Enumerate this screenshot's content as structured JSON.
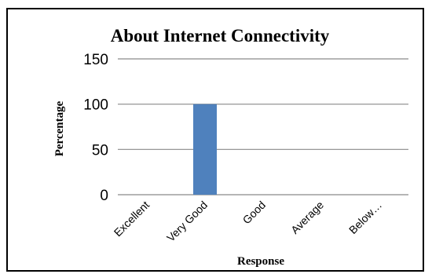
{
  "chart_data": {
    "type": "bar",
    "title": "About Internet Connectivity",
    "xlabel": "Response",
    "ylabel": "Percentage",
    "categories": [
      "Excellent",
      "Very Good",
      "Good",
      "Average",
      "Below…"
    ],
    "values": [
      0,
      100,
      0,
      0,
      0
    ],
    "ylim": [
      0,
      150
    ],
    "yticks": [
      "0",
      "50",
      "100",
      "150"
    ],
    "grid": true,
    "bar_color": "#4F81BD"
  }
}
